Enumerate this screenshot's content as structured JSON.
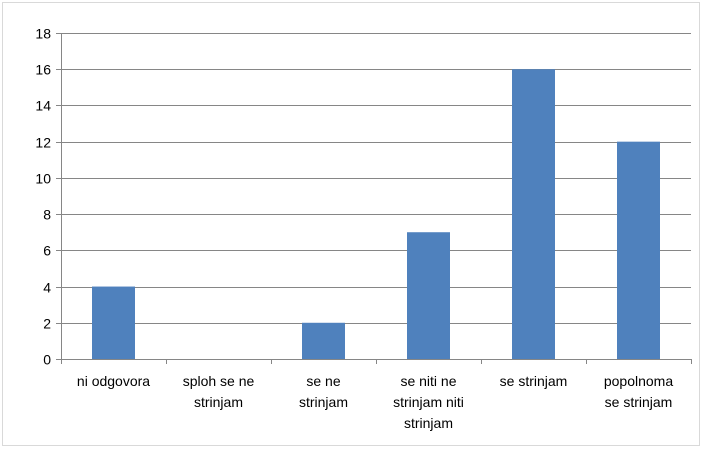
{
  "chart_data": {
    "type": "bar",
    "categories": [
      [
        "ni odgovora"
      ],
      [
        "sploh se ne",
        "strinjam"
      ],
      [
        "se ne",
        "strinjam"
      ],
      [
        "se niti ne",
        "strinjam niti",
        "strinjam"
      ],
      [
        "se strinjam"
      ],
      [
        "popolnoma",
        "se strinjam"
      ]
    ],
    "values": [
      4,
      0,
      2,
      7,
      16,
      12
    ],
    "title": "",
    "xlabel": "",
    "ylabel": "",
    "ylim": [
      0,
      18
    ],
    "yticks": [
      0,
      2,
      4,
      6,
      8,
      10,
      12,
      14,
      16,
      18
    ],
    "grid": true,
    "legend": "none",
    "bar_color": "#4f81bd",
    "grid_color": "#868686"
  }
}
